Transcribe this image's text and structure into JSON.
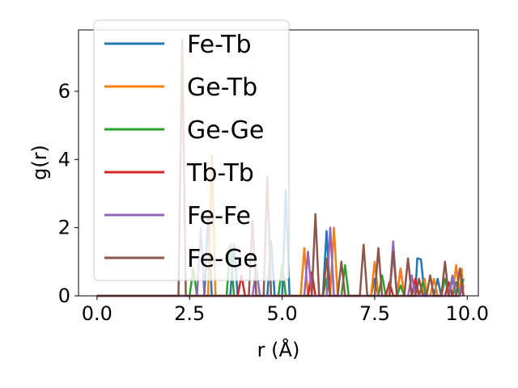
{
  "chart_data": {
    "type": "line",
    "xlabel": "r (Å)",
    "ylabel": "g(r)",
    "xlim": [
      -0.5,
      10.3
    ],
    "ylim": [
      0,
      7.8
    ],
    "xticks": [
      0.0,
      2.5,
      5.0,
      7.5,
      10.0
    ],
    "xtick_labels": [
      "0.0",
      "2.5",
      "5.0",
      "7.5",
      "10.0"
    ],
    "yticks": [
      0,
      2,
      4,
      6
    ],
    "ytick_labels": [
      "0",
      "2",
      "4",
      "6"
    ],
    "grid": false,
    "legend_position": "upper-left",
    "series": [
      {
        "name": "Fe-Tb",
        "color": "#1f77b4",
        "points": [
          [
            0,
            0
          ],
          [
            2.9,
            0
          ],
          [
            3.0,
            2.3
          ],
          [
            3.1,
            0
          ],
          [
            3.6,
            0
          ],
          [
            3.7,
            1.5
          ],
          [
            3.8,
            0
          ],
          [
            4.6,
            0
          ],
          [
            4.7,
            1.6
          ],
          [
            4.8,
            0
          ],
          [
            5.0,
            0
          ],
          [
            5.1,
            3.1
          ],
          [
            5.2,
            0
          ],
          [
            6.1,
            0
          ],
          [
            6.2,
            1.9
          ],
          [
            6.3,
            0
          ],
          [
            7.4,
            0
          ],
          [
            7.5,
            0.5
          ],
          [
            7.6,
            0
          ],
          [
            8.1,
            0
          ],
          [
            8.2,
            0.8
          ],
          [
            8.3,
            0
          ],
          [
            8.6,
            0
          ],
          [
            8.65,
            1.1
          ],
          [
            8.75,
            1.07
          ],
          [
            8.85,
            0
          ],
          [
            9.1,
            0
          ],
          [
            9.2,
            0.5
          ],
          [
            9.3,
            0
          ],
          [
            9.5,
            0
          ],
          [
            9.6,
            0.5
          ],
          [
            9.7,
            0
          ],
          [
            9.8,
            0
          ],
          [
            9.85,
            0.3
          ],
          [
            9.9,
            0
          ]
        ]
      },
      {
        "name": "Ge-Tb",
        "color": "#ff7f0e",
        "points": [
          [
            0,
            0
          ],
          [
            3.0,
            0
          ],
          [
            3.1,
            4.1
          ],
          [
            3.2,
            0
          ],
          [
            5.5,
            0
          ],
          [
            5.6,
            1.4
          ],
          [
            5.7,
            0
          ],
          [
            6.3,
            0
          ],
          [
            6.4,
            2.0
          ],
          [
            6.5,
            0
          ],
          [
            7.4,
            0
          ],
          [
            7.5,
            1.0
          ],
          [
            7.6,
            0
          ],
          [
            8.1,
            0
          ],
          [
            8.2,
            0.8
          ],
          [
            8.3,
            0
          ],
          [
            8.8,
            0
          ],
          [
            8.85,
            0.5
          ],
          [
            8.9,
            0
          ],
          [
            9.0,
            0
          ],
          [
            9.1,
            0.5
          ],
          [
            9.2,
            0
          ],
          [
            9.6,
            0
          ],
          [
            9.7,
            0.9
          ],
          [
            9.8,
            0
          ],
          [
            9.85,
            0.8
          ],
          [
            9.9,
            0
          ]
        ]
      },
      {
        "name": "Ge-Ge",
        "color": "#2ca02c",
        "points": [
          [
            0,
            0
          ],
          [
            2.5,
            0
          ],
          [
            2.6,
            0.8
          ],
          [
            2.7,
            0
          ],
          [
            3.5,
            0
          ],
          [
            3.6,
            1.5
          ],
          [
            3.7,
            0
          ],
          [
            4.9,
            0
          ],
          [
            5.0,
            0.9
          ],
          [
            5.1,
            0
          ],
          [
            6.1,
            0
          ],
          [
            6.2,
            0.5
          ],
          [
            6.3,
            0
          ],
          [
            6.6,
            0
          ],
          [
            6.7,
            0.9
          ],
          [
            6.8,
            0
          ],
          [
            7.6,
            0
          ],
          [
            7.7,
            0.6
          ],
          [
            7.8,
            0
          ],
          [
            8.1,
            0
          ],
          [
            8.2,
            0.3
          ],
          [
            8.3,
            0
          ],
          [
            8.7,
            0
          ],
          [
            8.8,
            0.4
          ],
          [
            8.9,
            0
          ],
          [
            9.3,
            0
          ],
          [
            9.4,
            0.5
          ],
          [
            9.5,
            0
          ],
          [
            9.6,
            0
          ],
          [
            9.7,
            0.4
          ],
          [
            9.8,
            0
          ],
          [
            9.9,
            0.5
          ]
        ]
      },
      {
        "name": "Tb-Tb",
        "color": "#d62728",
        "points": [
          [
            0,
            0
          ],
          [
            3.8,
            0
          ],
          [
            3.9,
            0.6
          ],
          [
            4.0,
            0
          ],
          [
            5.7,
            0
          ],
          [
            5.8,
            0.7
          ],
          [
            5.9,
            0
          ],
          [
            7.8,
            0
          ],
          [
            7.9,
            0.4
          ],
          [
            8.0,
            0
          ],
          [
            8.5,
            0
          ],
          [
            8.6,
            0.5
          ],
          [
            8.7,
            0
          ],
          [
            9.4,
            0
          ],
          [
            9.5,
            0.4
          ],
          [
            9.6,
            0
          ],
          [
            9.8,
            0
          ],
          [
            9.9,
            0.3
          ]
        ]
      },
      {
        "name": "Fe-Fe",
        "color": "#9467bd",
        "points": [
          [
            0,
            0
          ],
          [
            2.7,
            0
          ],
          [
            2.8,
            2.0
          ],
          [
            2.9,
            0
          ],
          [
            4.2,
            0
          ],
          [
            4.3,
            0.8
          ],
          [
            4.4,
            0
          ],
          [
            5.6,
            0
          ],
          [
            5.7,
            1.3
          ],
          [
            5.8,
            0
          ],
          [
            6.2,
            0
          ],
          [
            6.3,
            2.0
          ],
          [
            6.4,
            0
          ],
          [
            7.9,
            0
          ],
          [
            8.0,
            1.6
          ],
          [
            8.1,
            0
          ],
          [
            8.4,
            0
          ],
          [
            8.5,
            0.6
          ],
          [
            8.6,
            0
          ],
          [
            9.5,
            0
          ],
          [
            9.6,
            0.6
          ],
          [
            9.7,
            0
          ],
          [
            9.8,
            0
          ],
          [
            9.85,
            0.4
          ],
          [
            9.9,
            0
          ]
        ]
      },
      {
        "name": "Fe-Ge",
        "color": "#8c564b",
        "points": [
          [
            0,
            0
          ],
          [
            2.2,
            0
          ],
          [
            2.3,
            7.5
          ],
          [
            2.4,
            0
          ],
          [
            4.1,
            0
          ],
          [
            4.2,
            2.2
          ],
          [
            4.3,
            0
          ],
          [
            4.5,
            0
          ],
          [
            4.6,
            3.5
          ],
          [
            4.7,
            0
          ],
          [
            5.8,
            0
          ],
          [
            5.9,
            2.4
          ],
          [
            6.0,
            0
          ],
          [
            6.1,
            0
          ],
          [
            6.2,
            1.1
          ],
          [
            6.3,
            0
          ],
          [
            6.5,
            0
          ],
          [
            6.6,
            1.0
          ],
          [
            6.7,
            0
          ],
          [
            7.1,
            0
          ],
          [
            7.2,
            1.5
          ],
          [
            7.3,
            0
          ],
          [
            7.5,
            0
          ],
          [
            7.6,
            1.4
          ],
          [
            7.7,
            0
          ],
          [
            7.9,
            0
          ],
          [
            8.0,
            1.3
          ],
          [
            8.1,
            0
          ],
          [
            8.3,
            0
          ],
          [
            8.4,
            1.1
          ],
          [
            8.5,
            0
          ],
          [
            8.6,
            0
          ],
          [
            8.7,
            0.5
          ],
          [
            8.8,
            0
          ],
          [
            8.9,
            0
          ],
          [
            9.0,
            0.6
          ],
          [
            9.1,
            0
          ],
          [
            9.3,
            0
          ],
          [
            9.4,
            1.0
          ],
          [
            9.5,
            0
          ],
          [
            9.7,
            0
          ],
          [
            9.8,
            0.8
          ],
          [
            9.9,
            0
          ]
        ]
      }
    ]
  }
}
